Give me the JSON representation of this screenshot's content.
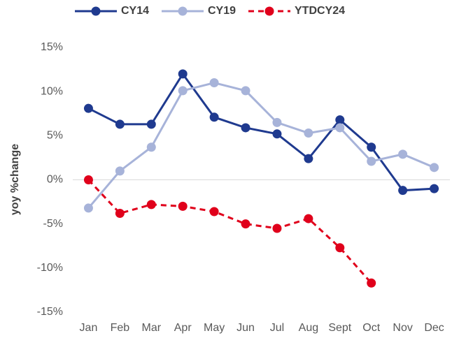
{
  "chart_data": {
    "type": "line",
    "y_label": "yoy %change",
    "categories": [
      "Jan",
      "Feb",
      "Mar",
      "Apr",
      "May",
      "Jun",
      "Jul",
      "Aug",
      "Sept",
      "Oct",
      "Nov",
      "Dec"
    ],
    "series": [
      {
        "name": "CY14",
        "color": "#1f3a8f",
        "line_style": "solid",
        "values": [
          8.1,
          6.3,
          6.3,
          12.0,
          7.1,
          5.9,
          5.2,
          2.4,
          6.8,
          3.7,
          -1.2,
          -1.0
        ]
      },
      {
        "name": "CY19",
        "color": "#a7b3d9",
        "line_style": "solid",
        "values": [
          -3.2,
          1.0,
          3.7,
          10.1,
          11.0,
          10.1,
          6.5,
          5.3,
          5.9,
          2.1,
          2.9,
          1.4
        ]
      },
      {
        "name": "YTDCY24",
        "color": "#e0001b",
        "line_style": "dashed",
        "values": [
          0,
          -3.8,
          -2.8,
          -3.0,
          -3.6,
          -5.0,
          -5.5,
          -4.4,
          -7.7,
          -11.7,
          null,
          null
        ]
      }
    ],
    "ylim": [
      -15,
      15
    ],
    "yticks": [
      {
        "value": -15,
        "label": "-15%"
      },
      {
        "value": -10,
        "label": "-10%"
      },
      {
        "value": -5,
        "label": "-5%"
      },
      {
        "value": 0,
        "label": "0%"
      },
      {
        "value": 5,
        "label": "5%"
      },
      {
        "value": 10,
        "label": "10%"
      },
      {
        "value": 15,
        "label": "15%"
      }
    ],
    "grid": false,
    "legend": "top"
  }
}
